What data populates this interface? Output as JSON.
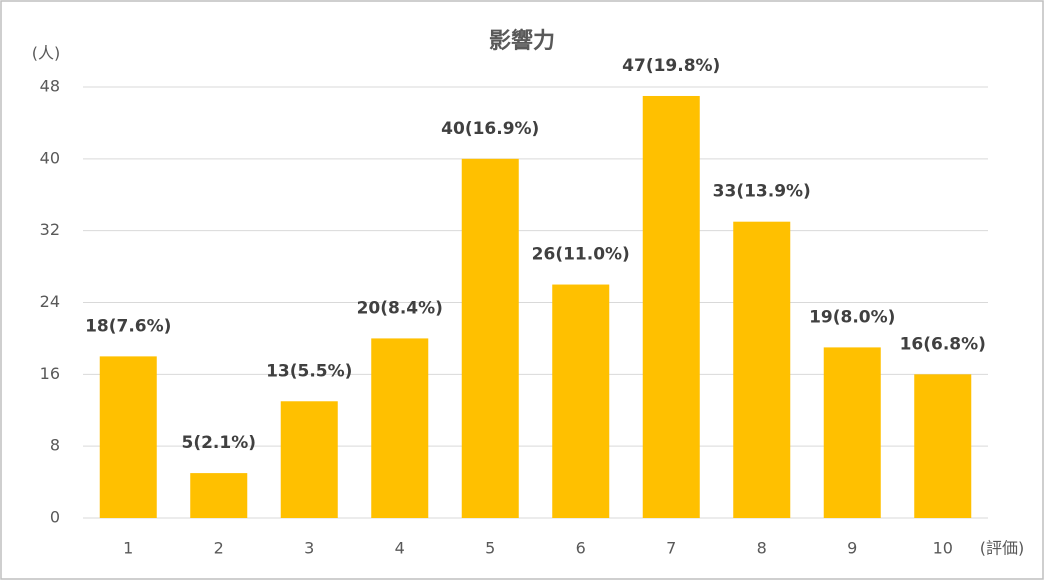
{
  "chart_data": {
    "type": "bar",
    "title": "影響力",
    "y_label": "(人)",
    "x_label": "(評価)",
    "categories": [
      "1",
      "2",
      "3",
      "4",
      "5",
      "6",
      "7",
      "8",
      "9",
      "10"
    ],
    "values": [
      18,
      5,
      13,
      20,
      40,
      26,
      47,
      33,
      19,
      16
    ],
    "value_labels": [
      "18(7.6%)",
      "5(2.1%)",
      "13(5.5%)",
      "20(8.4%)",
      "40(16.9%)",
      "26(11.0%)",
      "47(19.8%)",
      "33(13.9%)",
      "19(8.0%)",
      "16(6.8%)"
    ],
    "color": "#ffc000",
    "ylim": [
      0,
      48
    ],
    "yticks": [
      0,
      8,
      16,
      24,
      32,
      40,
      48
    ],
    "grid": true
  }
}
